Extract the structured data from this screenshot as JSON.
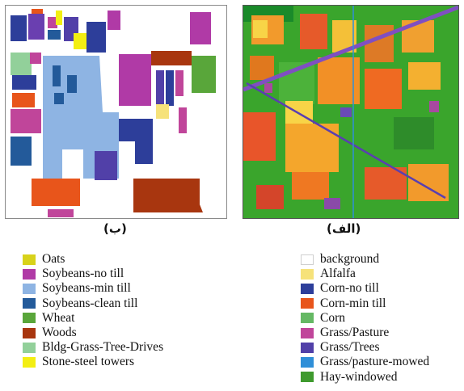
{
  "captions": {
    "left": "(ب)",
    "right": "(الف)"
  },
  "legend_left": [
    {
      "label": "Oats",
      "color": "#d8d21b"
    },
    {
      "label": "Soybeans-no till",
      "color": "#b03aa6"
    },
    {
      "label": "Soybeans-min till",
      "color": "#8eb4e3"
    },
    {
      "label": "Soybeans-clean till",
      "color": "#235a9a"
    },
    {
      "label": "Wheat",
      "color": "#59a63a"
    },
    {
      "label": "Woods",
      "color": "#a8360f"
    },
    {
      "label": "Bldg-Grass-Tree-Drives",
      "color": "#92d09a"
    },
    {
      "label": "Stone-steel towers",
      "color": "#f3ee12"
    }
  ],
  "legend_right": [
    {
      "label": "background",
      "color": "#ffffff"
    },
    {
      "label": "Alfalfa",
      "color": "#f6e27a"
    },
    {
      "label": "Corn-no till",
      "color": "#2d3e9a"
    },
    {
      "label": "Corn-min till",
      "color": "#e8551b"
    },
    {
      "label": "Corn",
      "color": "#65b864"
    },
    {
      "label": "Grass/Pasture",
      "color": "#c0459a"
    },
    {
      "label": "Grass/Trees",
      "color": "#5140a8"
    },
    {
      "label": "Grass/pasture-mowed",
      "color": "#2f8fd8"
    },
    {
      "label": "Hay-windowed",
      "color": "#3f9a2e"
    }
  ]
}
